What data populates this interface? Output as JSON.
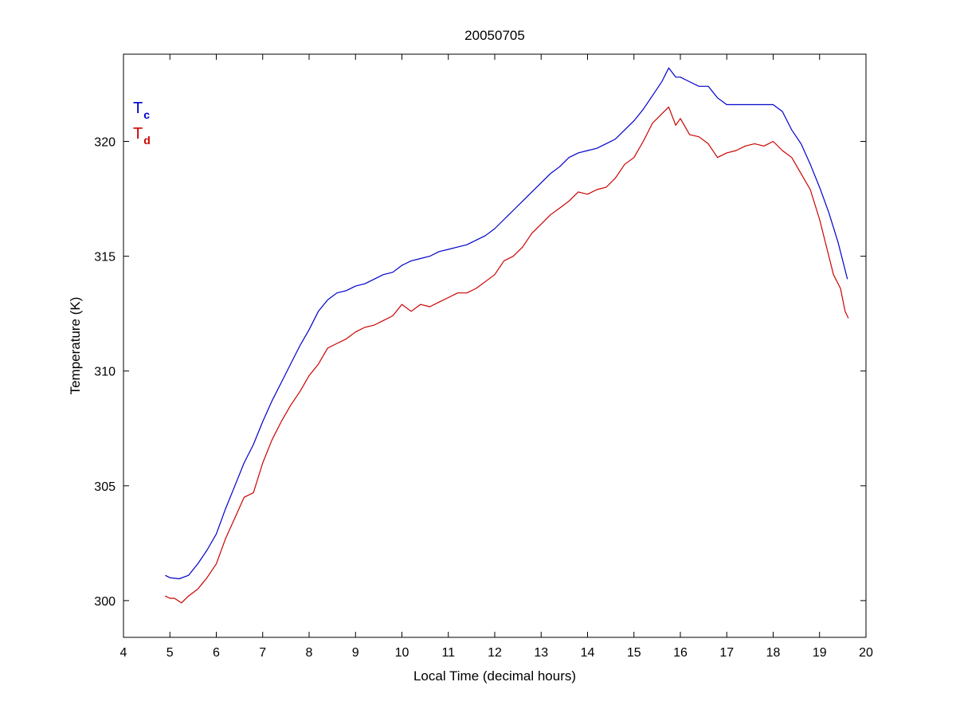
{
  "chart_data": {
    "type": "line",
    "title": "20050705",
    "xlabel": "Local Time (decimal hours)",
    "ylabel": "Temperature (K)",
    "xlim": [
      4,
      20
    ],
    "ylim": [
      298.4,
      323.8
    ],
    "x_ticks": [
      4,
      5,
      6,
      7,
      8,
      9,
      10,
      11,
      12,
      13,
      14,
      15,
      16,
      17,
      18,
      19,
      20
    ],
    "y_ticks": [
      300,
      305,
      310,
      315,
      320
    ],
    "grid": false,
    "legend_position": "top-left",
    "series": [
      {
        "name": "T",
        "subscript": "c",
        "color": "#0000cc",
        "points": [
          [
            4.9,
            301.1
          ],
          [
            5.0,
            301.0
          ],
          [
            5.2,
            300.95
          ],
          [
            5.4,
            301.1
          ],
          [
            5.6,
            301.6
          ],
          [
            5.8,
            302.2
          ],
          [
            6.0,
            302.9
          ],
          [
            6.2,
            304.0
          ],
          [
            6.4,
            305.0
          ],
          [
            6.6,
            306.0
          ],
          [
            6.8,
            306.8
          ],
          [
            7.0,
            307.8
          ],
          [
            7.2,
            308.7
          ],
          [
            7.4,
            309.5
          ],
          [
            7.6,
            310.3
          ],
          [
            7.8,
            311.1
          ],
          [
            8.0,
            311.8
          ],
          [
            8.2,
            312.6
          ],
          [
            8.4,
            313.1
          ],
          [
            8.6,
            313.4
          ],
          [
            8.8,
            313.5
          ],
          [
            9.0,
            313.7
          ],
          [
            9.2,
            313.8
          ],
          [
            9.4,
            314.0
          ],
          [
            9.6,
            314.2
          ],
          [
            9.8,
            314.3
          ],
          [
            10.0,
            314.6
          ],
          [
            10.2,
            314.8
          ],
          [
            10.4,
            314.9
          ],
          [
            10.6,
            315.0
          ],
          [
            10.8,
            315.2
          ],
          [
            11.0,
            315.3
          ],
          [
            11.2,
            315.4
          ],
          [
            11.4,
            315.5
          ],
          [
            11.6,
            315.7
          ],
          [
            11.8,
            315.9
          ],
          [
            12.0,
            316.2
          ],
          [
            12.2,
            316.6
          ],
          [
            12.4,
            317.0
          ],
          [
            12.6,
            317.4
          ],
          [
            12.8,
            317.8
          ],
          [
            13.0,
            318.2
          ],
          [
            13.2,
            318.6
          ],
          [
            13.4,
            318.9
          ],
          [
            13.6,
            319.3
          ],
          [
            13.8,
            319.5
          ],
          [
            14.0,
            319.6
          ],
          [
            14.2,
            319.7
          ],
          [
            14.4,
            319.9
          ],
          [
            14.6,
            320.1
          ],
          [
            14.8,
            320.5
          ],
          [
            15.0,
            320.9
          ],
          [
            15.2,
            321.4
          ],
          [
            15.4,
            322.0
          ],
          [
            15.6,
            322.6
          ],
          [
            15.75,
            323.2
          ],
          [
            15.9,
            322.8
          ],
          [
            16.0,
            322.8
          ],
          [
            16.2,
            322.6
          ],
          [
            16.4,
            322.4
          ],
          [
            16.6,
            322.4
          ],
          [
            16.8,
            321.9
          ],
          [
            17.0,
            321.6
          ],
          [
            17.2,
            321.6
          ],
          [
            17.4,
            321.6
          ],
          [
            17.6,
            321.6
          ],
          [
            17.8,
            321.6
          ],
          [
            18.0,
            321.6
          ],
          [
            18.2,
            321.3
          ],
          [
            18.4,
            320.5
          ],
          [
            18.6,
            319.9
          ],
          [
            18.8,
            319.0
          ],
          [
            19.0,
            318.0
          ],
          [
            19.2,
            316.9
          ],
          [
            19.4,
            315.6
          ],
          [
            19.55,
            314.4
          ],
          [
            19.6,
            314.0
          ]
        ]
      },
      {
        "name": "T",
        "subscript": "d",
        "color": "#cc0000",
        "points": [
          [
            4.9,
            300.2
          ],
          [
            5.0,
            300.1
          ],
          [
            5.1,
            300.1
          ],
          [
            5.25,
            299.9
          ],
          [
            5.4,
            300.2
          ],
          [
            5.6,
            300.5
          ],
          [
            5.8,
            301.0
          ],
          [
            6.0,
            301.6
          ],
          [
            6.2,
            302.7
          ],
          [
            6.4,
            303.6
          ],
          [
            6.6,
            304.5
          ],
          [
            6.8,
            304.7
          ],
          [
            7.0,
            306.0
          ],
          [
            7.2,
            307.0
          ],
          [
            7.4,
            307.8
          ],
          [
            7.6,
            308.5
          ],
          [
            7.8,
            309.1
          ],
          [
            8.0,
            309.8
          ],
          [
            8.2,
            310.3
          ],
          [
            8.4,
            311.0
          ],
          [
            8.6,
            311.2
          ],
          [
            8.8,
            311.4
          ],
          [
            9.0,
            311.7
          ],
          [
            9.2,
            311.9
          ],
          [
            9.4,
            312.0
          ],
          [
            9.6,
            312.2
          ],
          [
            9.8,
            312.4
          ],
          [
            10.0,
            312.9
          ],
          [
            10.2,
            312.6
          ],
          [
            10.4,
            312.9
          ],
          [
            10.6,
            312.8
          ],
          [
            10.8,
            313.0
          ],
          [
            11.0,
            313.2
          ],
          [
            11.2,
            313.4
          ],
          [
            11.4,
            313.4
          ],
          [
            11.6,
            313.6
          ],
          [
            11.8,
            313.9
          ],
          [
            12.0,
            314.2
          ],
          [
            12.2,
            314.8
          ],
          [
            12.4,
            315.0
          ],
          [
            12.6,
            315.4
          ],
          [
            12.8,
            316.0
          ],
          [
            13.0,
            316.4
          ],
          [
            13.2,
            316.8
          ],
          [
            13.4,
            317.1
          ],
          [
            13.6,
            317.4
          ],
          [
            13.8,
            317.8
          ],
          [
            14.0,
            317.7
          ],
          [
            14.2,
            317.9
          ],
          [
            14.4,
            318.0
          ],
          [
            14.6,
            318.4
          ],
          [
            14.8,
            319.0
          ],
          [
            15.0,
            319.3
          ],
          [
            15.2,
            320.0
          ],
          [
            15.4,
            320.8
          ],
          [
            15.6,
            321.2
          ],
          [
            15.75,
            321.5
          ],
          [
            15.9,
            320.7
          ],
          [
            16.0,
            321.0
          ],
          [
            16.2,
            320.3
          ],
          [
            16.4,
            320.2
          ],
          [
            16.6,
            319.9
          ],
          [
            16.8,
            319.3
          ],
          [
            17.0,
            319.5
          ],
          [
            17.2,
            319.6
          ],
          [
            17.4,
            319.8
          ],
          [
            17.6,
            319.9
          ],
          [
            17.8,
            319.8
          ],
          [
            18.0,
            320.0
          ],
          [
            18.2,
            319.6
          ],
          [
            18.4,
            319.3
          ],
          [
            18.6,
            318.6
          ],
          [
            18.8,
            317.9
          ],
          [
            19.0,
            316.6
          ],
          [
            19.2,
            315.0
          ],
          [
            19.3,
            314.2
          ],
          [
            19.45,
            313.6
          ],
          [
            19.55,
            312.6
          ],
          [
            19.62,
            312.3
          ]
        ]
      }
    ]
  }
}
